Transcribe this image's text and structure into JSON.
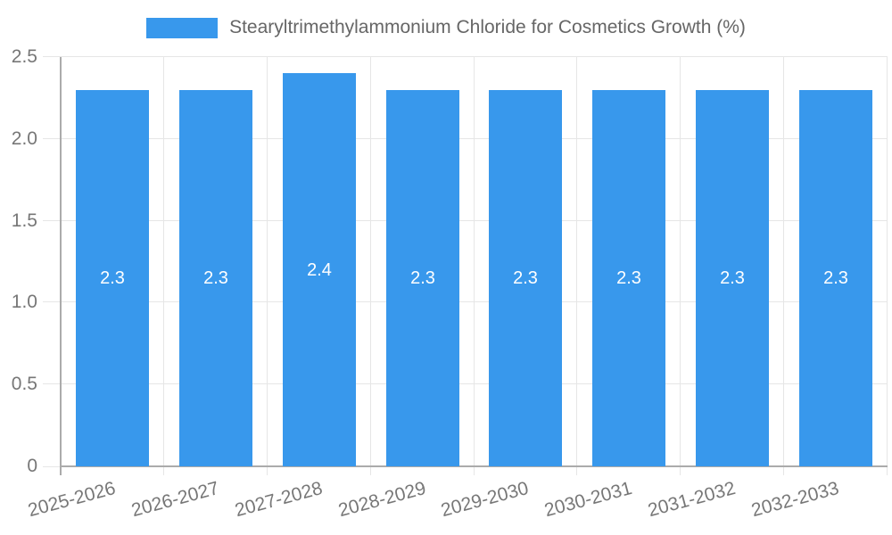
{
  "legend": {
    "swatch_color": "#3898ec"
  },
  "chart_data": {
    "type": "bar",
    "title": "Stearyltrimethylammonium Chloride for Cosmetics Growth (%)",
    "categories": [
      "2025-2026",
      "2026-2027",
      "2027-2028",
      "2028-2029",
      "2029-2030",
      "2030-2031",
      "2031-2032",
      "2032-2033"
    ],
    "values": [
      2.3,
      2.3,
      2.4,
      2.3,
      2.3,
      2.3,
      2.3,
      2.3
    ],
    "value_labels": [
      "2.3",
      "2.3",
      "2.4",
      "2.3",
      "2.3",
      "2.3",
      "2.3",
      "2.3"
    ],
    "xlabel": "",
    "ylabel": "",
    "ylim": [
      0,
      2.5
    ],
    "y_tick_values": [
      0,
      0.5,
      1,
      1.5,
      2,
      2.5
    ],
    "y_tick_labels": [
      "0",
      "0.5",
      "1.0",
      "1.5",
      "2.0",
      "2.5"
    ],
    "grid": true,
    "legend_position": "top",
    "x_label_rotation_deg": -15,
    "colors": {
      "bar": "#3898ec",
      "grid": "#e6e6e6",
      "axis": "#ababab",
      "tick_text": "#777777",
      "legend_text": "#666666",
      "bar_label": "#ffffff",
      "background": "#ffffff"
    }
  }
}
